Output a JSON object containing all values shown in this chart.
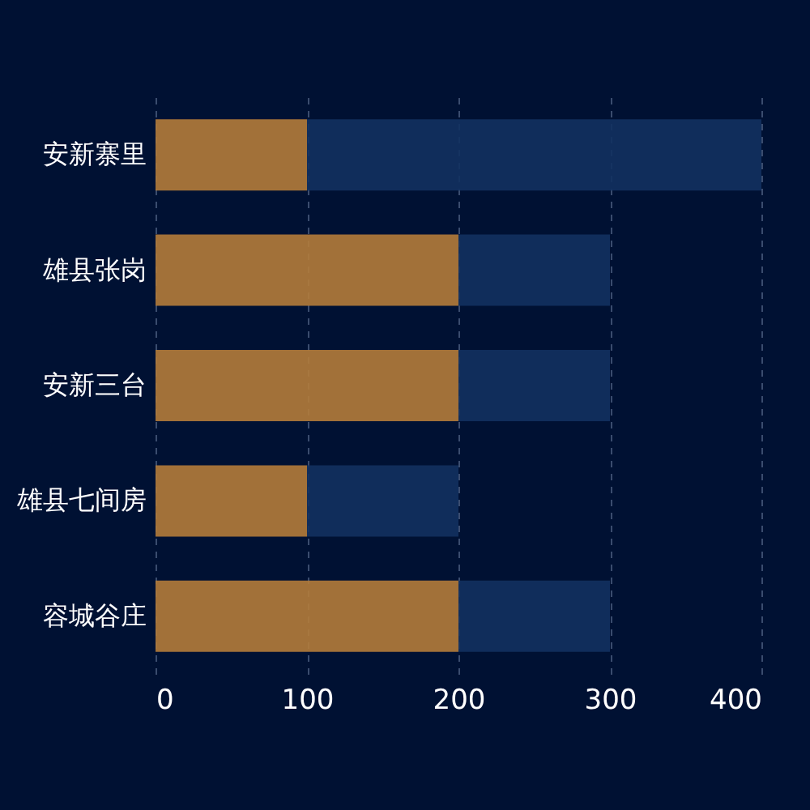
{
  "chart_data": {
    "type": "bar",
    "orientation": "horizontal",
    "stacked": true,
    "categories": [
      "安新寨里",
      "雄县张岗",
      "安新三台",
      "雄县七间房",
      "容城谷庄"
    ],
    "series": [
      {
        "color": "#b47c3a",
        "values": [
          100,
          200,
          200,
          100,
          200
        ]
      },
      {
        "color": "#12315f",
        "values": [
          300,
          100,
          100,
          100,
          100
        ]
      }
    ],
    "xlim": [
      0,
      400
    ],
    "xticks": [
      0,
      100,
      200,
      300,
      400
    ],
    "grid": "x",
    "legend": false
  }
}
